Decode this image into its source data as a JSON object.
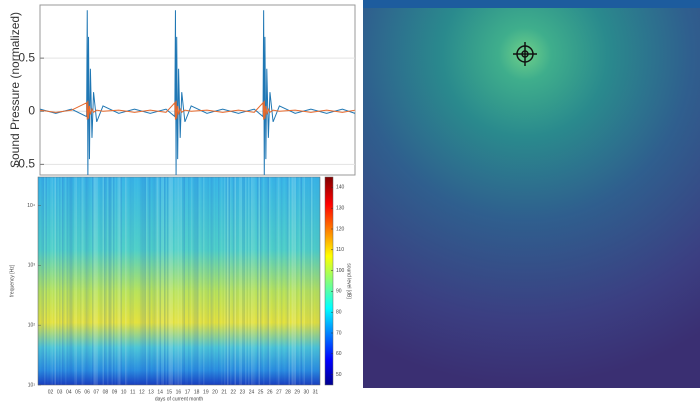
{
  "chart_data": [
    {
      "type": "line",
      "ylabel": "Sound Pressure (normalized)",
      "x": [
        0,
        5,
        10,
        14.8,
        15,
        15.2,
        15.4,
        15.7,
        16,
        16.5,
        17,
        18,
        20,
        25,
        30,
        35,
        40,
        42.8,
        43,
        43.2,
        43.4,
        43.7,
        44,
        44.5,
        45,
        46,
        48,
        53,
        58,
        63,
        68,
        70.8,
        71,
        71.2,
        71.4,
        71.7,
        72,
        72.5,
        73,
        74,
        76,
        81,
        86,
        91,
        96,
        100
      ],
      "xlim": [
        0,
        100
      ],
      "ylim": [
        -0.6,
        1.0
      ],
      "yticks": [
        0.5,
        0,
        -0.5
      ],
      "grid": true,
      "series": [
        {
          "color": "#1f77b4",
          "values": [
            0.02,
            -0.02,
            0.02,
            -0.05,
            0.95,
            -0.6,
            0.7,
            -0.45,
            0.4,
            -0.25,
            0.18,
            -0.1,
            0.05,
            -0.02,
            0.02,
            -0.02,
            0.02,
            -0.05,
            0.95,
            -0.6,
            0.7,
            -0.45,
            0.4,
            -0.25,
            0.18,
            -0.1,
            0.05,
            -0.02,
            0.02,
            -0.02,
            0.02,
            -0.05,
            0.95,
            -0.6,
            0.7,
            -0.45,
            0.4,
            -0.25,
            0.18,
            -0.1,
            0.05,
            -0.02,
            0.02,
            -0.02,
            0.02,
            -0.02
          ]
        },
        {
          "color": "#e8692b",
          "values": [
            0.01,
            -0.01,
            0.01,
            0.08,
            -0.08,
            0.1,
            -0.07,
            0.05,
            -0.03,
            0.02,
            -0.01,
            0.01,
            0,
            0.01,
            -0.01,
            0.01,
            -0.01,
            0.08,
            -0.08,
            0.1,
            -0.07,
            0.05,
            -0.03,
            0.02,
            -0.01,
            0.01,
            0,
            0.01,
            -0.01,
            0.01,
            -0.01,
            0.08,
            -0.08,
            0.1,
            -0.07,
            0.05,
            -0.03,
            0.02,
            -0.01,
            0.01,
            0,
            0.01,
            -0.01,
            0.01,
            -0.01,
            0.01
          ]
        }
      ]
    },
    {
      "type": "heatmap",
      "xlabel": "days of current month",
      "ylabel": "frequency [Hz]",
      "colorbar_label": "sound level [dB]",
      "categories": [
        "02",
        "03",
        "04",
        "05",
        "06",
        "07",
        "08",
        "09",
        "10",
        "11",
        "12",
        "13",
        "14",
        "15",
        "16",
        "17",
        "18",
        "19",
        "20",
        "21",
        "22",
        "23",
        "24",
        "25",
        "26",
        "27",
        "28",
        "29",
        "30",
        "31"
      ],
      "log_y": true,
      "ylim": [
        10,
        30000
      ],
      "yticks": [
        {
          "value": 10,
          "label": "10¹"
        },
        {
          "value": 100,
          "label": "10²"
        },
        {
          "value": 1000,
          "label": "10³"
        },
        {
          "value": 10000,
          "label": "10⁴"
        }
      ],
      "clim": [
        45,
        145
      ],
      "cticks": [
        50,
        60,
        70,
        80,
        90,
        100,
        110,
        120,
        130,
        140
      ]
    }
  ]
}
